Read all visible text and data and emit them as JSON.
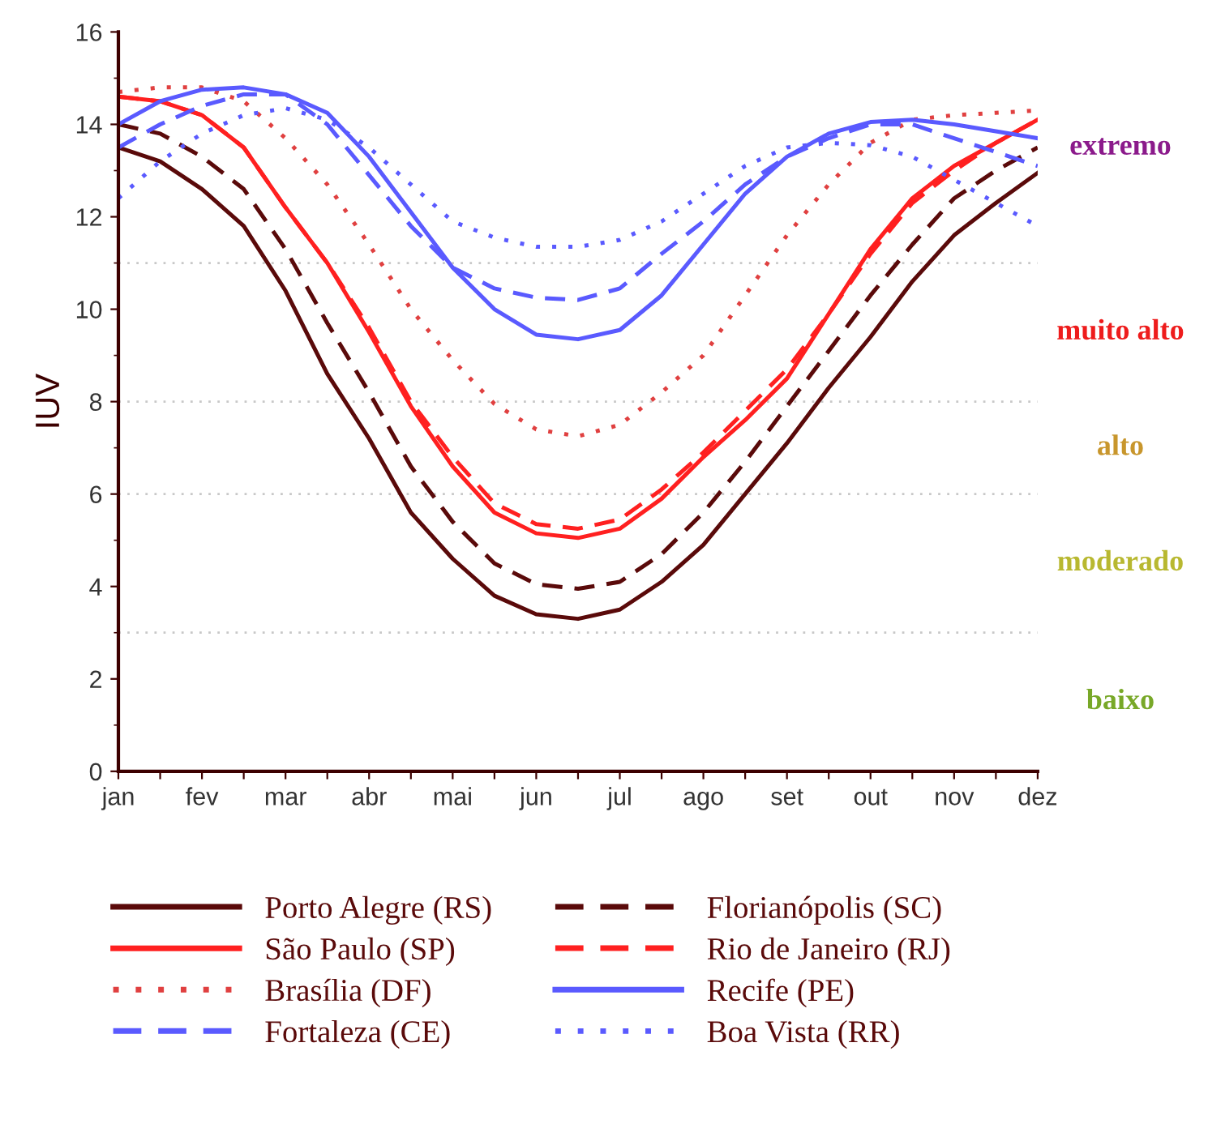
{
  "chart_data": {
    "type": "line",
    "ylabel": "IUV",
    "categories": [
      "jan",
      null,
      "fev",
      null,
      "mar",
      null,
      "abr",
      null,
      "mai",
      null,
      "jun",
      null,
      "jul",
      null,
      "ago",
      null,
      "set",
      null,
      "out",
      null,
      "nov",
      null,
      "dez"
    ],
    "ylim": [
      0,
      16
    ],
    "yticks": [
      0,
      2,
      4,
      6,
      8,
      10,
      12,
      14,
      16
    ],
    "grid": false,
    "legend": "bottom",
    "marker": "none",
    "series": [
      {
        "name": "Porto Alegre (RS)",
        "color": "#5a0a0a",
        "line_style": "solid",
        "values": [
          13.5,
          13.2,
          12.6,
          11.8,
          10.4,
          8.6,
          7.2,
          5.6,
          4.6,
          3.8,
          3.4,
          3.3,
          3.5,
          4.1,
          4.9,
          6.0,
          7.1,
          8.3,
          9.4,
          10.6,
          11.6,
          12.3,
          12.95
        ]
      },
      {
        "name": "Florianópolis (SC)",
        "color": "#5a0a0a",
        "line_style": "dashed",
        "values": [
          14.0,
          13.8,
          13.3,
          12.6,
          11.3,
          9.7,
          8.2,
          6.6,
          5.4,
          4.5,
          4.05,
          3.95,
          4.1,
          4.7,
          5.6,
          6.7,
          7.9,
          9.1,
          10.3,
          11.4,
          12.4,
          13.0,
          13.5
        ]
      },
      {
        "name": "São Paulo (SP)",
        "color": "#ff2020",
        "line_style": "solid",
        "values": [
          14.6,
          14.5,
          14.2,
          13.5,
          12.2,
          11.0,
          9.5,
          7.9,
          6.6,
          5.6,
          5.15,
          5.05,
          5.25,
          5.9,
          6.8,
          7.6,
          8.5,
          9.9,
          11.3,
          12.4,
          13.1,
          13.6,
          14.1
        ]
      },
      {
        "name": "Rio de Janeiro (RJ)",
        "color": "#ff2020",
        "line_style": "dashed",
        "values": [
          14.6,
          14.5,
          14.2,
          13.5,
          12.2,
          11.0,
          9.6,
          8.0,
          6.8,
          5.8,
          5.35,
          5.25,
          5.45,
          6.1,
          6.9,
          7.8,
          8.7,
          9.9,
          11.2,
          12.3,
          13.0,
          13.6,
          14.1
        ]
      },
      {
        "name": "Brasília (DF)",
        "color": "#e04040",
        "line_style": "dotted",
        "values": [
          14.7,
          14.8,
          14.8,
          14.5,
          13.7,
          12.7,
          11.4,
          10.0,
          8.9,
          7.95,
          7.4,
          7.25,
          7.5,
          8.2,
          9.0,
          10.3,
          11.6,
          12.7,
          13.6,
          14.1,
          14.2,
          14.25,
          14.3
        ]
      },
      {
        "name": "Recife (PE)",
        "color": "#5a5aff",
        "line_style": "solid",
        "values": [
          14.0,
          14.5,
          14.75,
          14.8,
          14.65,
          14.25,
          13.3,
          12.1,
          10.9,
          10.0,
          9.45,
          9.35,
          9.55,
          10.3,
          11.4,
          12.5,
          13.3,
          13.8,
          14.05,
          14.1,
          14.0,
          13.85,
          13.7
        ]
      },
      {
        "name": "Fortaleza (CE)",
        "color": "#5a5aff",
        "line_style": "dashed",
        "values": [
          13.5,
          14.0,
          14.4,
          14.65,
          14.65,
          14.0,
          12.9,
          11.8,
          10.9,
          10.45,
          10.25,
          10.2,
          10.45,
          11.2,
          11.9,
          12.7,
          13.3,
          13.7,
          14.0,
          14.0,
          13.7,
          13.4,
          13.1
        ]
      },
      {
        "name": "Boa Vista (RR)",
        "color": "#5a5aff",
        "line_style": "dotted",
        "values": [
          12.4,
          13.2,
          13.8,
          14.2,
          14.35,
          14.1,
          13.5,
          12.7,
          11.9,
          11.55,
          11.35,
          11.35,
          11.5,
          11.9,
          12.5,
          13.1,
          13.5,
          13.6,
          13.55,
          13.3,
          12.8,
          12.3,
          11.8
        ]
      }
    ],
    "ref_lines": [
      {
        "axis": "y",
        "value": 3,
        "color": "#c8c8c8",
        "line_style": "dotted"
      },
      {
        "axis": "y",
        "value": 6,
        "color": "#c8c8c8",
        "line_style": "dotted"
      },
      {
        "axis": "y",
        "value": 8,
        "color": "#c8c8c8",
        "line_style": "dotted"
      },
      {
        "axis": "y",
        "value": 11,
        "color": "#c8c8c8",
        "line_style": "dotted"
      }
    ],
    "annotations": [
      "extremo",
      "muito alto",
      "alto",
      "moderado",
      "baixo"
    ]
  }
}
